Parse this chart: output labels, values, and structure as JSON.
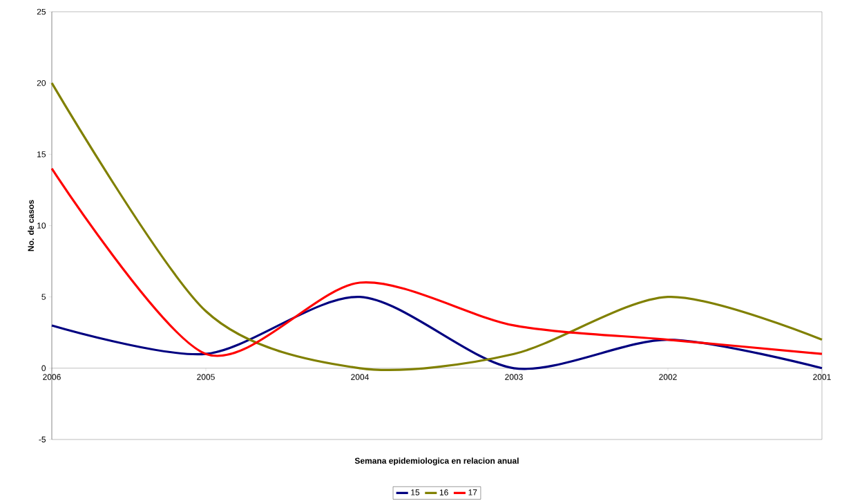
{
  "chart_data": {
    "type": "line",
    "xlabel": "Semana epidemiologica en relacion anual",
    "ylabel": "No. de casos",
    "categories": [
      "2006",
      "2005",
      "2004",
      "2003",
      "2002",
      "2001"
    ],
    "series": [
      {
        "name": "15",
        "color": "#000080",
        "values": [
          3,
          1,
          5,
          0,
          2,
          0
        ]
      },
      {
        "name": "16",
        "color": "#808000",
        "values": [
          20,
          4,
          0,
          1,
          5,
          2
        ]
      },
      {
        "name": "17",
        "color": "#ff0000",
        "values": [
          14,
          1,
          6,
          3,
          2,
          1
        ]
      }
    ],
    "ylim": [
      -5,
      25
    ],
    "yticks": [
      -5,
      0,
      5,
      10,
      15,
      20,
      25
    ],
    "grid": false,
    "legend": "bottom",
    "marker": "none",
    "line_style": "solid"
  }
}
